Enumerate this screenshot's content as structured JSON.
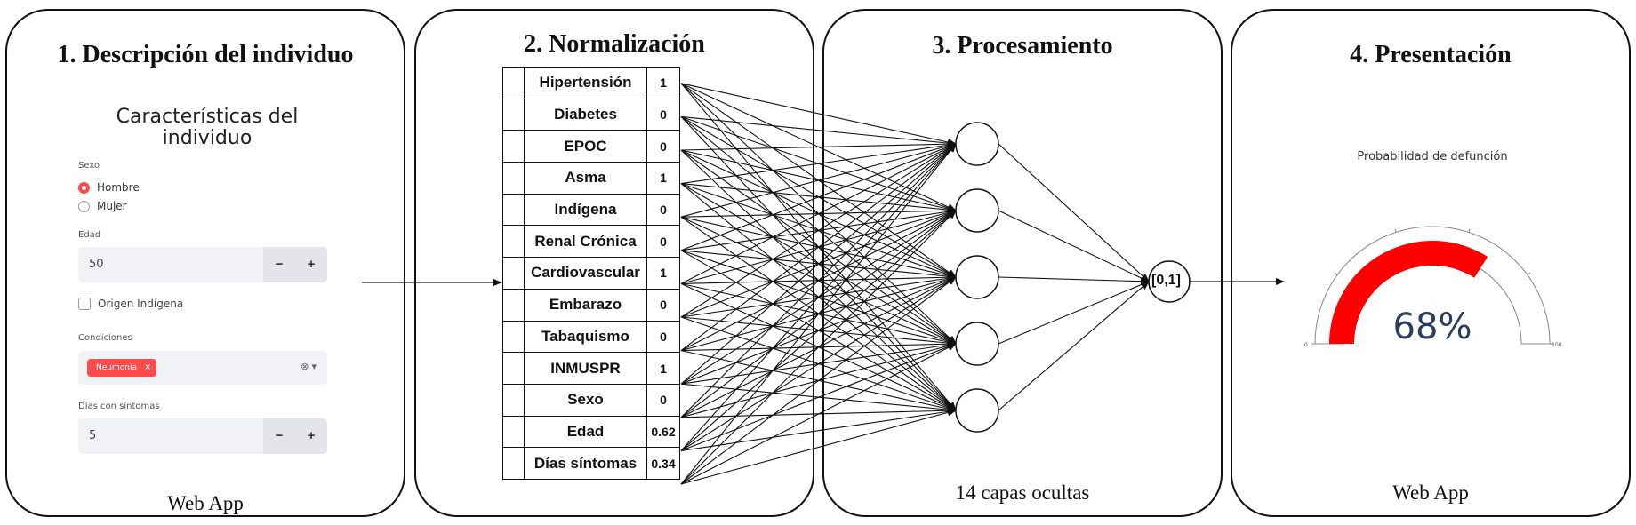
{
  "panels": [
    {
      "title": "1. Descripción del individuo",
      "footer": "Web App"
    },
    {
      "title": "2. Normalización",
      "footer": ""
    },
    {
      "title": "3. Procesamiento",
      "footer": "14 capas ocultas"
    },
    {
      "title": "4. Presentación",
      "footer": "Web App"
    }
  ],
  "form": {
    "title_line1": "Características del",
    "title_line2": "individuo",
    "sexo_label": "Sexo",
    "sexo_options": [
      "Hombre",
      "Mujer"
    ],
    "sexo_selected": "Hombre",
    "edad_label": "Edad",
    "edad_value": "50",
    "indigena_label": "Origen Indígena",
    "condiciones_label": "Condiciones",
    "condiciones_tag": "Neumonía",
    "dias_label": "Días con síntomas",
    "dias_value": "5",
    "minus": "−",
    "plus": "+",
    "tag_close": "×",
    "multiselect_controls": "⊗ ▾"
  },
  "features": [
    {
      "name": "Hipertensión",
      "value": "1"
    },
    {
      "name": "Diabetes",
      "value": "0"
    },
    {
      "name": "EPOC",
      "value": "0"
    },
    {
      "name": "Asma",
      "value": "1"
    },
    {
      "name": "Indígena",
      "value": "0"
    },
    {
      "name": "Renal Crónica",
      "value": "0"
    },
    {
      "name": "Cardiovascular",
      "value": "1"
    },
    {
      "name": "Embarazo",
      "value": "0"
    },
    {
      "name": "Tabaquismo",
      "value": "0"
    },
    {
      "name": "INMUSPR",
      "value": "1"
    },
    {
      "name": "Sexo",
      "value": "0"
    },
    {
      "name": "Edad",
      "value": "0.62"
    },
    {
      "name": "Días síntomas",
      "value": "0.34"
    }
  ],
  "network": {
    "hidden_nodes": 5,
    "output_label": "[0,1]"
  },
  "gauge": {
    "title": "Probabilidad de defunción",
    "value": 68,
    "value_text": "68%",
    "min_label": "0",
    "max_label": "100",
    "bar_color": "#ff0000"
  }
}
